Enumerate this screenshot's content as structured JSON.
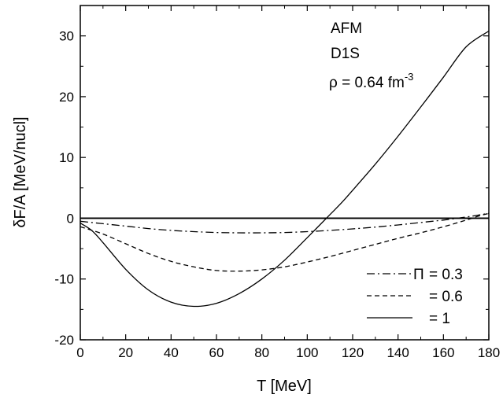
{
  "chart_data": {
    "type": "line",
    "xlabel": "T [MeV]",
    "ylabel": "δF/A [MeV/nucl]",
    "xlim": [
      0,
      180
    ],
    "ylim": [
      -20,
      35
    ],
    "x_ticks": [
      0,
      20,
      40,
      60,
      80,
      100,
      120,
      140,
      160,
      180
    ],
    "x_tick_labels": [
      "0",
      "20",
      "40",
      "60",
      "80",
      "100",
      "120",
      "140",
      "160",
      "180"
    ],
    "y_ticks": [
      -20,
      -10,
      0,
      10,
      20,
      30
    ],
    "y_tick_labels": [
      "-20",
      "-10",
      "0",
      "10",
      "20",
      "30"
    ],
    "grid": false,
    "annotations": {
      "line1": "AFM",
      "line2": "D1S",
      "density_prefix": "ρ = 0.64 fm",
      "density_exponent": "-3"
    },
    "zero_line": true,
    "legend": {
      "placement": "bottom-right",
      "symbol": "Π",
      "entries": [
        "= 0.3",
        "= 0.6",
        "= 1"
      ]
    },
    "series": [
      {
        "name": "= 0.3",
        "style": "dash-dot",
        "x": [
          0,
          10,
          20,
          30,
          40,
          50,
          60,
          70,
          80,
          90,
          100,
          110,
          120,
          130,
          140,
          150,
          160,
          170,
          175,
          180
        ],
        "y": [
          -0.5,
          -0.9,
          -1.3,
          -1.7,
          -2.0,
          -2.2,
          -2.35,
          -2.4,
          -2.4,
          -2.35,
          -2.2,
          -2.0,
          -1.75,
          -1.45,
          -1.1,
          -0.7,
          -0.3,
          0.2,
          0.5,
          0.8
        ]
      },
      {
        "name": "= 0.6",
        "style": "dashed",
        "x": [
          0,
          10,
          20,
          30,
          40,
          50,
          60,
          70,
          80,
          90,
          100,
          110,
          120,
          130,
          140,
          150,
          160,
          170,
          175,
          180
        ],
        "y": [
          -1.4,
          -2.6,
          -4.2,
          -5.8,
          -7.1,
          -8.0,
          -8.6,
          -8.7,
          -8.5,
          -8.0,
          -7.2,
          -6.3,
          -5.3,
          -4.3,
          -3.3,
          -2.4,
          -1.4,
          -0.3,
          0.3,
          0.8
        ]
      },
      {
        "name": "= 1",
        "style": "solid",
        "x": [
          0,
          5,
          10,
          20,
          30,
          40,
          50,
          60,
          70,
          80,
          90,
          100,
          110,
          115,
          120,
          130,
          140,
          150,
          160,
          170,
          180
        ],
        "y": [
          -0.8,
          -2.0,
          -4.0,
          -8.4,
          -11.8,
          -13.8,
          -14.5,
          -14.0,
          -12.4,
          -10.0,
          -6.9,
          -3.2,
          0.6,
          2.5,
          4.6,
          8.9,
          13.5,
          18.3,
          23.2,
          28.2,
          30.8
        ]
      }
    ]
  }
}
